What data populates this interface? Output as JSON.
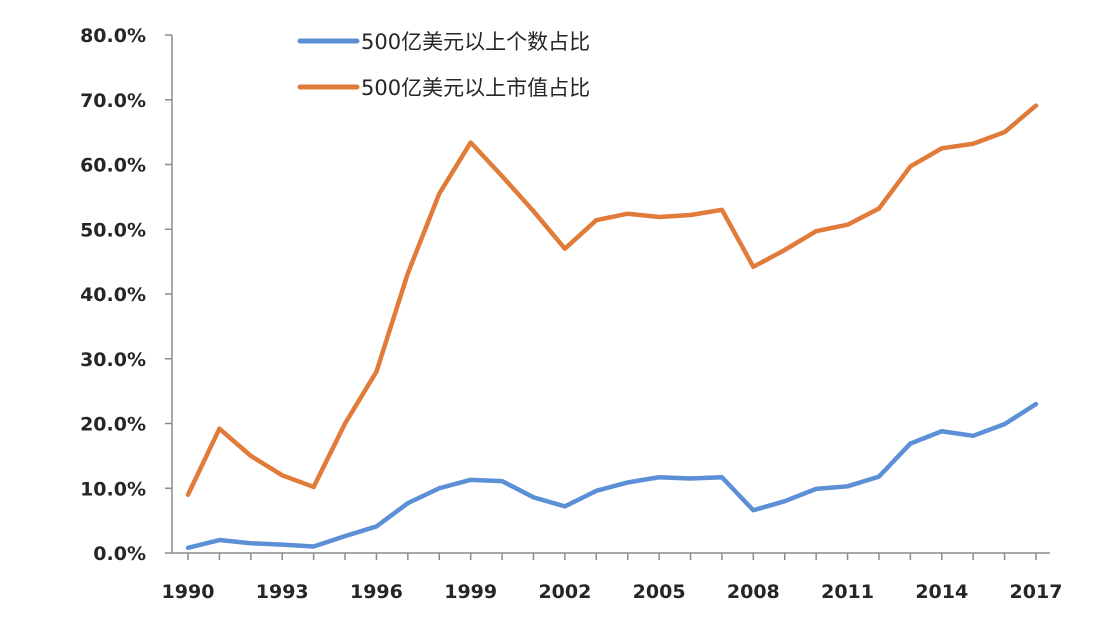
{
  "chart_data": {
    "type": "line",
    "title": "",
    "xlabel": "",
    "ylabel": "",
    "x": [
      1990,
      1991,
      1992,
      1993,
      1994,
      1995,
      1996,
      1997,
      1998,
      1999,
      2000,
      2001,
      2002,
      2003,
      2004,
      2005,
      2006,
      2007,
      2008,
      2009,
      2010,
      2011,
      2012,
      2013,
      2014,
      2015,
      2016,
      2017
    ],
    "x_tick_labels": [
      "1990",
      "1993",
      "1996",
      "1999",
      "2002",
      "2005",
      "2008",
      "2011",
      "2014",
      "2017"
    ],
    "y_tick_labels": [
      "0.0%",
      "10.0%",
      "20.0%",
      "30.0%",
      "40.0%",
      "50.0%",
      "60.0%",
      "70.0%",
      "80.0%"
    ],
    "ylim": [
      0,
      80
    ],
    "xlim": [
      1990,
      2017
    ],
    "grid": false,
    "legend_position": "top-center",
    "series": [
      {
        "name": "500亿美元以上个数占比",
        "color": "#5b8fd6",
        "values": [
          0.8,
          2.0,
          1.5,
          1.3,
          1.0,
          2.6,
          4.1,
          7.7,
          10.0,
          11.3,
          11.1,
          8.6,
          7.2,
          9.6,
          10.9,
          11.7,
          11.5,
          11.7,
          6.6,
          8.0,
          9.9,
          10.3,
          11.8,
          16.9,
          18.8,
          18.1,
          19.9,
          23.0
        ]
      },
      {
        "name": "500亿美元以上市值占比",
        "color": "#e07b39",
        "values": [
          9.0,
          19.2,
          15.0,
          12.0,
          10.2,
          20.0,
          28.0,
          43.2,
          55.5,
          63.4,
          58.2,
          52.8,
          47.0,
          51.4,
          52.4,
          51.9,
          52.2,
          53.0,
          44.2,
          46.8,
          49.7,
          50.7,
          53.2,
          59.7,
          62.5,
          63.2,
          65.0,
          69.1
        ]
      }
    ]
  }
}
